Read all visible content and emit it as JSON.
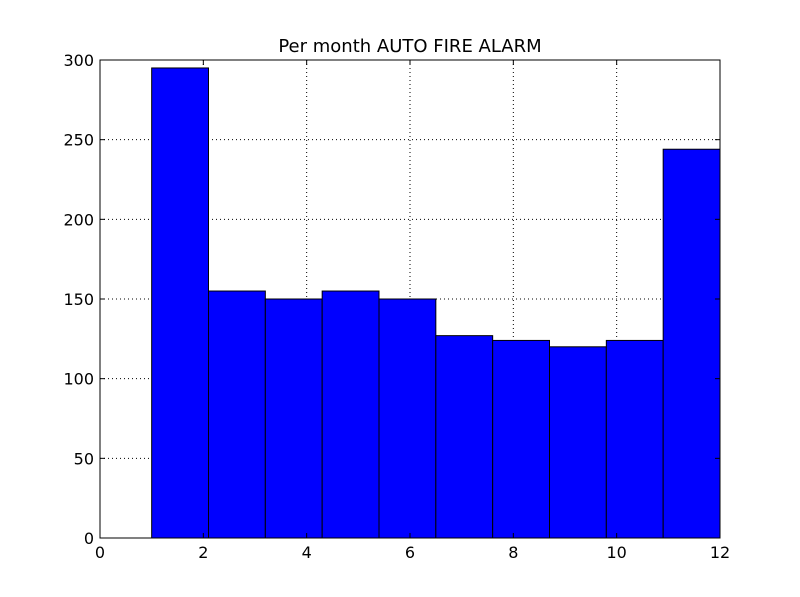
{
  "chart_data": {
    "type": "bar",
    "title": "Per month AUTO FIRE ALARM",
    "xlabel": "",
    "ylabel": "",
    "xlim": [
      0,
      12
    ],
    "ylim": [
      0,
      300
    ],
    "xticks": [
      0,
      2,
      4,
      6,
      8,
      10,
      12
    ],
    "yticks": [
      0,
      50,
      100,
      150,
      200,
      250,
      300
    ],
    "grid": true,
    "bar_color": "#0000ff",
    "bins": [
      {
        "x0": 1.0,
        "x1": 2.1,
        "value": 295
      },
      {
        "x0": 2.1,
        "x1": 3.2,
        "value": 155
      },
      {
        "x0": 3.2,
        "x1": 4.3,
        "value": 150
      },
      {
        "x0": 4.3,
        "x1": 5.4,
        "value": 155
      },
      {
        "x0": 5.4,
        "x1": 6.5,
        "value": 150
      },
      {
        "x0": 6.5,
        "x1": 7.6,
        "value": 127
      },
      {
        "x0": 7.6,
        "x1": 8.7,
        "value": 124
      },
      {
        "x0": 8.7,
        "x1": 9.8,
        "value": 120
      },
      {
        "x0": 9.8,
        "x1": 10.9,
        "value": 124
      },
      {
        "x0": 10.9,
        "x1": 12.0,
        "value": 244
      }
    ]
  }
}
